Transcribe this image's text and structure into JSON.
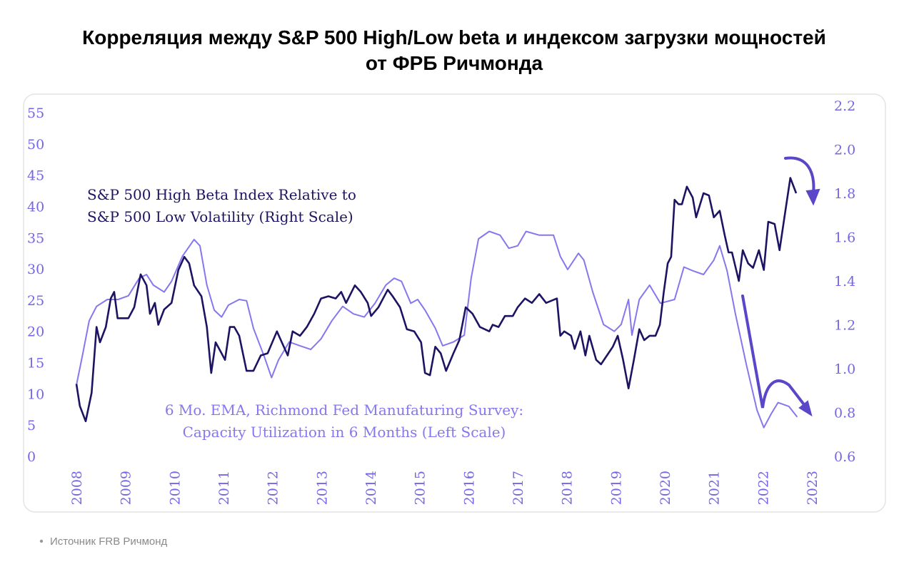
{
  "chart_data": {
    "type": "line",
    "title": [
      "Корреляция между S&P 500 High/Low beta и индексом загрузки мощностей",
      "от ФРБ Ричмонда"
    ],
    "annotations": [
      {
        "lines": [
          "S&P 500 High Beta Index Relative to",
          "S&P 500 Low Volatility (Right Scale)"
        ],
        "color": "#1c1462"
      },
      {
        "lines": [
          "6 Mo. EMA, Richmond Fed Manufaturing Survey:",
          "Capacity Utilization in 6 Months (Left Scale)"
        ],
        "color": "#8577ee"
      }
    ],
    "xlim": [
      2008,
      2023
    ],
    "xticks": [
      2008,
      2009,
      2010,
      2011,
      2012,
      2013,
      2014,
      2015,
      2016,
      2017,
      2018,
      2019,
      2020,
      2021,
      2022,
      2023
    ],
    "ylim": [
      0,
      55
    ],
    "yticks": [
      0,
      5,
      10,
      15,
      20,
      25,
      30,
      35,
      40,
      45,
      50,
      55
    ],
    "y2lim": [
      0.6,
      2.2
    ],
    "y2ticks": [
      0.6,
      0.8,
      {
        "value": 1.0,
        "label": "1.0"
      },
      1.2,
      1.4,
      1.6,
      1.8,
      {
        "value": 2.0,
        "label": "2.0"
      },
      2.2
    ],
    "grid": false,
    "series": [
      {
        "name": "6 Mo. EMA, Richmond Fed Manufaturing Survey",
        "color": "#8577ee",
        "axis": "y",
        "x": [
          2008.0,
          2008.12,
          2008.26,
          2008.41,
          2008.63,
          2008.85,
          2009.06,
          2009.28,
          2009.43,
          2009.57,
          2009.79,
          2009.94,
          2010.16,
          2010.4,
          2010.52,
          2010.66,
          2010.81,
          2010.96,
          2011.1,
          2011.32,
          2011.47,
          2011.61,
          2011.83,
          2011.98,
          2012.12,
          2012.34,
          2012.56,
          2012.78,
          2012.99,
          2013.21,
          2013.43,
          2013.65,
          2013.87,
          2014.09,
          2014.31,
          2014.48,
          2014.63,
          2014.82,
          2014.96,
          2015.11,
          2015.32,
          2015.47,
          2015.69,
          2015.91,
          2016.05,
          2016.2,
          2016.42,
          2016.64,
          2016.82,
          2017.0,
          2017.17,
          2017.44,
          2017.73,
          2017.87,
          2018.02,
          2018.24,
          2018.35,
          2018.53,
          2018.75,
          2018.97,
          2019.11,
          2019.26,
          2019.33,
          2019.48,
          2019.69,
          2019.91,
          2020.2,
          2020.39,
          2020.57,
          2020.79,
          2021.0,
          2021.12,
          2021.27,
          2021.44,
          2021.66,
          2021.88,
          2022.02,
          2022.17,
          2022.31,
          2022.53,
          2022.7
        ],
        "values": [
          11.4,
          16.0,
          21.7,
          24.0,
          25.1,
          25.1,
          25.7,
          28.5,
          29.1,
          27.4,
          26.3,
          28.0,
          32.0,
          34.7,
          33.7,
          27.4,
          23.4,
          22.3,
          24.2,
          25.1,
          24.9,
          20.5,
          16.0,
          12.6,
          15.4,
          18.3,
          17.7,
          17.1,
          18.8,
          21.7,
          24.0,
          22.8,
          22.3,
          24.5,
          27.4,
          28.5,
          28.0,
          24.5,
          25.1,
          23.4,
          20.5,
          17.7,
          18.3,
          19.4,
          28.5,
          34.8,
          36.0,
          35.4,
          33.3,
          33.7,
          36.0,
          35.4,
          35.4,
          32.0,
          29.9,
          32.5,
          31.4,
          26.3,
          21.1,
          20.0,
          21.1,
          25.1,
          19.4,
          25.1,
          27.4,
          24.5,
          25.1,
          30.3,
          29.7,
          29.1,
          31.4,
          33.7,
          29.7,
          22.8,
          14.8,
          7.4,
          4.6,
          6.8,
          8.6,
          8.0,
          6.3
        ]
      },
      {
        "name": "S&P 500 High Beta Index Relative to S&P 500 Low Volatility",
        "color": "#1c1462",
        "axis": "y2",
        "x": [
          2008.0,
          2008.07,
          2008.19,
          2008.31,
          2008.41,
          2008.48,
          2008.6,
          2008.7,
          2008.77,
          2008.84,
          2009.06,
          2009.18,
          2009.31,
          2009.43,
          2009.5,
          2009.6,
          2009.67,
          2009.79,
          2009.94,
          2010.08,
          2010.2,
          2010.3,
          2010.4,
          2010.55,
          2010.66,
          2010.75,
          2010.84,
          2010.96,
          2011.03,
          2011.13,
          2011.22,
          2011.32,
          2011.47,
          2011.61,
          2011.76,
          2011.9,
          2012.09,
          2012.19,
          2012.31,
          2012.41,
          2012.56,
          2012.7,
          2012.85,
          2012.99,
          2013.14,
          2013.29,
          2013.4,
          2013.5,
          2013.68,
          2013.8,
          2013.94,
          2014.01,
          2014.16,
          2014.35,
          2014.45,
          2014.6,
          2014.74,
          2014.89,
          2015.03,
          2015.11,
          2015.21,
          2015.32,
          2015.43,
          2015.54,
          2015.69,
          2015.81,
          2015.94,
          2016.08,
          2016.23,
          2016.42,
          2016.49,
          2016.61,
          2016.74,
          2016.9,
          2017.0,
          2017.15,
          2017.29,
          2017.44,
          2017.58,
          2017.8,
          2017.87,
          2017.95,
          2018.09,
          2018.16,
          2018.28,
          2018.38,
          2018.46,
          2018.6,
          2018.7,
          2018.82,
          2018.94,
          2019.04,
          2019.15,
          2019.26,
          2019.37,
          2019.48,
          2019.58,
          2019.69,
          2019.81,
          2019.9,
          2019.98,
          2020.06,
          2020.13,
          2020.2,
          2020.28,
          2020.35,
          2020.45,
          2020.57,
          2020.64,
          2020.79,
          2020.9,
          2021.0,
          2021.12,
          2021.22,
          2021.3,
          2021.37,
          2021.51,
          2021.59,
          2021.7,
          2021.8,
          2021.92,
          2022.02,
          2022.11,
          2022.24,
          2022.34,
          2022.46,
          2022.56,
          2022.68
        ],
        "values": [
          0.93,
          0.83,
          0.76,
          0.89,
          1.19,
          1.12,
          1.19,
          1.32,
          1.35,
          1.23,
          1.23,
          1.28,
          1.43,
          1.38,
          1.25,
          1.3,
          1.2,
          1.27,
          1.3,
          1.45,
          1.51,
          1.48,
          1.38,
          1.33,
          1.19,
          0.98,
          1.12,
          1.07,
          1.04,
          1.19,
          1.19,
          1.15,
          0.99,
          0.99,
          1.06,
          1.07,
          1.17,
          1.12,
          1.06,
          1.17,
          1.15,
          1.19,
          1.25,
          1.32,
          1.33,
          1.32,
          1.35,
          1.3,
          1.38,
          1.35,
          1.3,
          1.24,
          1.28,
          1.36,
          1.33,
          1.28,
          1.18,
          1.17,
          1.12,
          0.98,
          0.97,
          1.1,
          1.07,
          0.99,
          1.07,
          1.13,
          1.28,
          1.25,
          1.19,
          1.17,
          1.2,
          1.19,
          1.24,
          1.24,
          1.28,
          1.32,
          1.3,
          1.34,
          1.3,
          1.32,
          1.15,
          1.17,
          1.15,
          1.09,
          1.17,
          1.06,
          1.15,
          1.04,
          1.02,
          1.06,
          1.1,
          1.15,
          1.04,
          0.91,
          1.04,
          1.18,
          1.13,
          1.15,
          1.15,
          1.2,
          1.35,
          1.48,
          1.51,
          1.77,
          1.75,
          1.75,
          1.83,
          1.78,
          1.69,
          1.8,
          1.79,
          1.69,
          1.72,
          1.61,
          1.53,
          1.53,
          1.4,
          1.54,
          1.48,
          1.46,
          1.54,
          1.45,
          1.67,
          1.66,
          1.54,
          1.72,
          1.87,
          1.8
        ]
      }
    ]
  },
  "source": "Источник FRB Ричмонд"
}
